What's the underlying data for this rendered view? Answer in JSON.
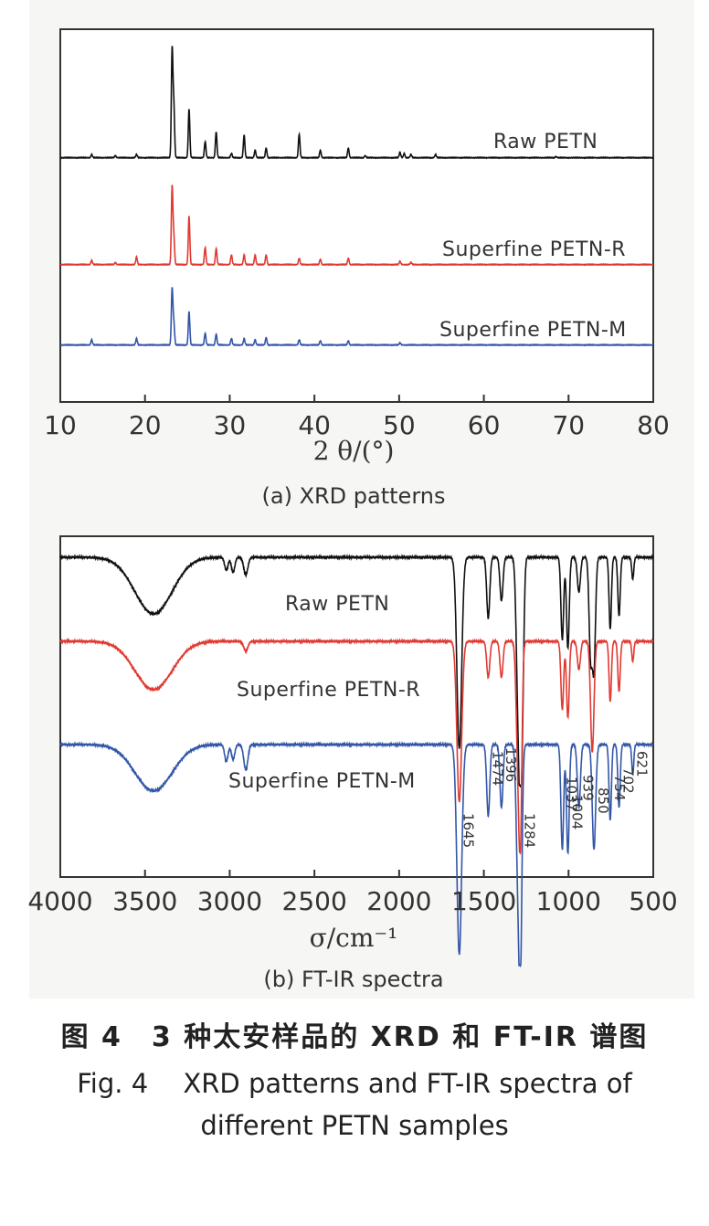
{
  "figure": {
    "caption_zh": "图 4　3 种太安样品的 XRD 和 FT-IR 谱图",
    "caption_en_line1": "Fig. 4　 XRD patterns and FT-IR spectra of",
    "caption_en_line2": "different PETN samples"
  },
  "colors": {
    "raw": "#111111",
    "r": "#e03a32",
    "m": "#3356a8"
  },
  "chart_data": [
    {
      "type": "line",
      "subtitle": "(a) XRD patterns",
      "xlabel": "2 θ/(°)",
      "ylabel": "",
      "xlim": [
        10,
        80
      ],
      "xticks": [
        10,
        20,
        30,
        40,
        50,
        60,
        70,
        80
      ],
      "grid": false,
      "series": [
        {
          "name": "Raw PETN",
          "color": "#111111",
          "peaks": [
            [
              13.7,
              0.03
            ],
            [
              16.5,
              0.02
            ],
            [
              19.0,
              0.03
            ],
            [
              23.2,
              1.0
            ],
            [
              23.4,
              0.48
            ],
            [
              25.2,
              0.45
            ],
            [
              27.1,
              0.15
            ],
            [
              28.4,
              0.24
            ],
            [
              30.2,
              0.04
            ],
            [
              31.7,
              0.21
            ],
            [
              33.0,
              0.07
            ],
            [
              34.3,
              0.09
            ],
            [
              38.2,
              0.22
            ],
            [
              40.7,
              0.07
            ],
            [
              44.0,
              0.09
            ],
            [
              46.0,
              0.02
            ],
            [
              50.1,
              0.05
            ],
            [
              50.6,
              0.04
            ],
            [
              51.4,
              0.03
            ],
            [
              54.3,
              0.03
            ],
            [
              68.5,
              0.01
            ]
          ]
        },
        {
          "name": "Superfine PETN-R",
          "color": "#e03a32",
          "peaks": [
            [
              13.7,
              0.04
            ],
            [
              16.5,
              0.02
            ],
            [
              19.0,
              0.07
            ],
            [
              23.2,
              0.72
            ],
            [
              23.4,
              0.25
            ],
            [
              25.2,
              0.45
            ],
            [
              27.1,
              0.16
            ],
            [
              28.4,
              0.15
            ],
            [
              30.2,
              0.09
            ],
            [
              31.7,
              0.09
            ],
            [
              33.0,
              0.09
            ],
            [
              34.3,
              0.09
            ],
            [
              38.2,
              0.06
            ],
            [
              40.7,
              0.05
            ],
            [
              44.0,
              0.06
            ],
            [
              50.1,
              0.03
            ],
            [
              51.4,
              0.02
            ]
          ]
        },
        {
          "name": "Superfine PETN-M",
          "color": "#3356a8",
          "peaks": [
            [
              13.7,
              0.05
            ],
            [
              19.0,
              0.06
            ],
            [
              23.2,
              0.52
            ],
            [
              23.4,
              0.2
            ],
            [
              25.2,
              0.31
            ],
            [
              27.1,
              0.11
            ],
            [
              28.4,
              0.1
            ],
            [
              30.2,
              0.06
            ],
            [
              31.7,
              0.06
            ],
            [
              33.0,
              0.05
            ],
            [
              34.3,
              0.07
            ],
            [
              38.2,
              0.05
            ],
            [
              40.7,
              0.04
            ],
            [
              44.0,
              0.04
            ],
            [
              50.1,
              0.02
            ]
          ]
        }
      ]
    },
    {
      "type": "line",
      "subtitle": "(b) FT-IR spectra",
      "xlabel": "σ/cm⁻¹",
      "ylabel": "",
      "xlim": [
        4000,
        500
      ],
      "xticks": [
        4000,
        3500,
        3000,
        2500,
        2000,
        1500,
        1000,
        500
      ],
      "grid": false,
      "series": [
        {
          "name": "Raw PETN",
          "color": "#111111",
          "bands": [
            [
              3450,
              0.26,
              110
            ],
            [
              3020,
              0.06,
              10
            ],
            [
              2980,
              0.07,
              10
            ],
            [
              2905,
              0.08,
              12
            ],
            [
              1645,
              0.88,
              14
            ],
            [
              1474,
              0.28,
              9
            ],
            [
              1396,
              0.2,
              9
            ],
            [
              1300,
              0.55,
              10
            ],
            [
              1284,
              0.95,
              9
            ],
            [
              1270,
              0.45,
              8
            ],
            [
              1037,
              0.38,
              8
            ],
            [
              1004,
              0.42,
              8
            ],
            [
              939,
              0.16,
              9
            ],
            [
              870,
              0.45,
              9
            ],
            [
              850,
              0.5,
              9
            ],
            [
              754,
              0.33,
              7
            ],
            [
              702,
              0.27,
              7
            ],
            [
              621,
              0.1,
              6
            ]
          ]
        },
        {
          "name": "Superfine PETN-R",
          "color": "#e03a32",
          "bands": [
            [
              3450,
              0.24,
              110
            ],
            [
              2905,
              0.05,
              12
            ],
            [
              1645,
              0.8,
              14
            ],
            [
              1474,
              0.18,
              9
            ],
            [
              1396,
              0.18,
              9
            ],
            [
              1300,
              0.5,
              10
            ],
            [
              1284,
              0.92,
              9
            ],
            [
              1037,
              0.34,
              8
            ],
            [
              1004,
              0.38,
              8
            ],
            [
              939,
              0.14,
              9
            ],
            [
              860,
              0.55,
              10
            ],
            [
              754,
              0.3,
              7
            ],
            [
              702,
              0.25,
              7
            ],
            [
              621,
              0.1,
              6
            ]
          ]
        },
        {
          "name": "Superfine PETN-M",
          "color": "#3356a8",
          "bands": [
            [
              3450,
              0.22,
              110
            ],
            [
              3020,
              0.08,
              10
            ],
            [
              2980,
              0.07,
              10
            ],
            [
              2905,
              0.12,
              12
            ],
            [
              1645,
              1.0,
              14
            ],
            [
              1474,
              0.34,
              9
            ],
            [
              1396,
              0.3,
              9
            ],
            [
              1300,
              0.55,
              10
            ],
            [
              1284,
              1.0,
              9
            ],
            [
              1037,
              0.5,
              8
            ],
            [
              1004,
              0.52,
              8
            ],
            [
              939,
              0.3,
              9
            ],
            [
              850,
              0.5,
              10
            ],
            [
              754,
              0.36,
              7
            ],
            [
              702,
              0.3,
              7
            ],
            [
              621,
              0.14,
              6
            ]
          ]
        }
      ],
      "annotations": [
        "1645",
        "1474",
        "1396",
        "1284",
        "1037",
        "1004",
        "939",
        "850",
        "754",
        "702",
        "621"
      ]
    }
  ]
}
